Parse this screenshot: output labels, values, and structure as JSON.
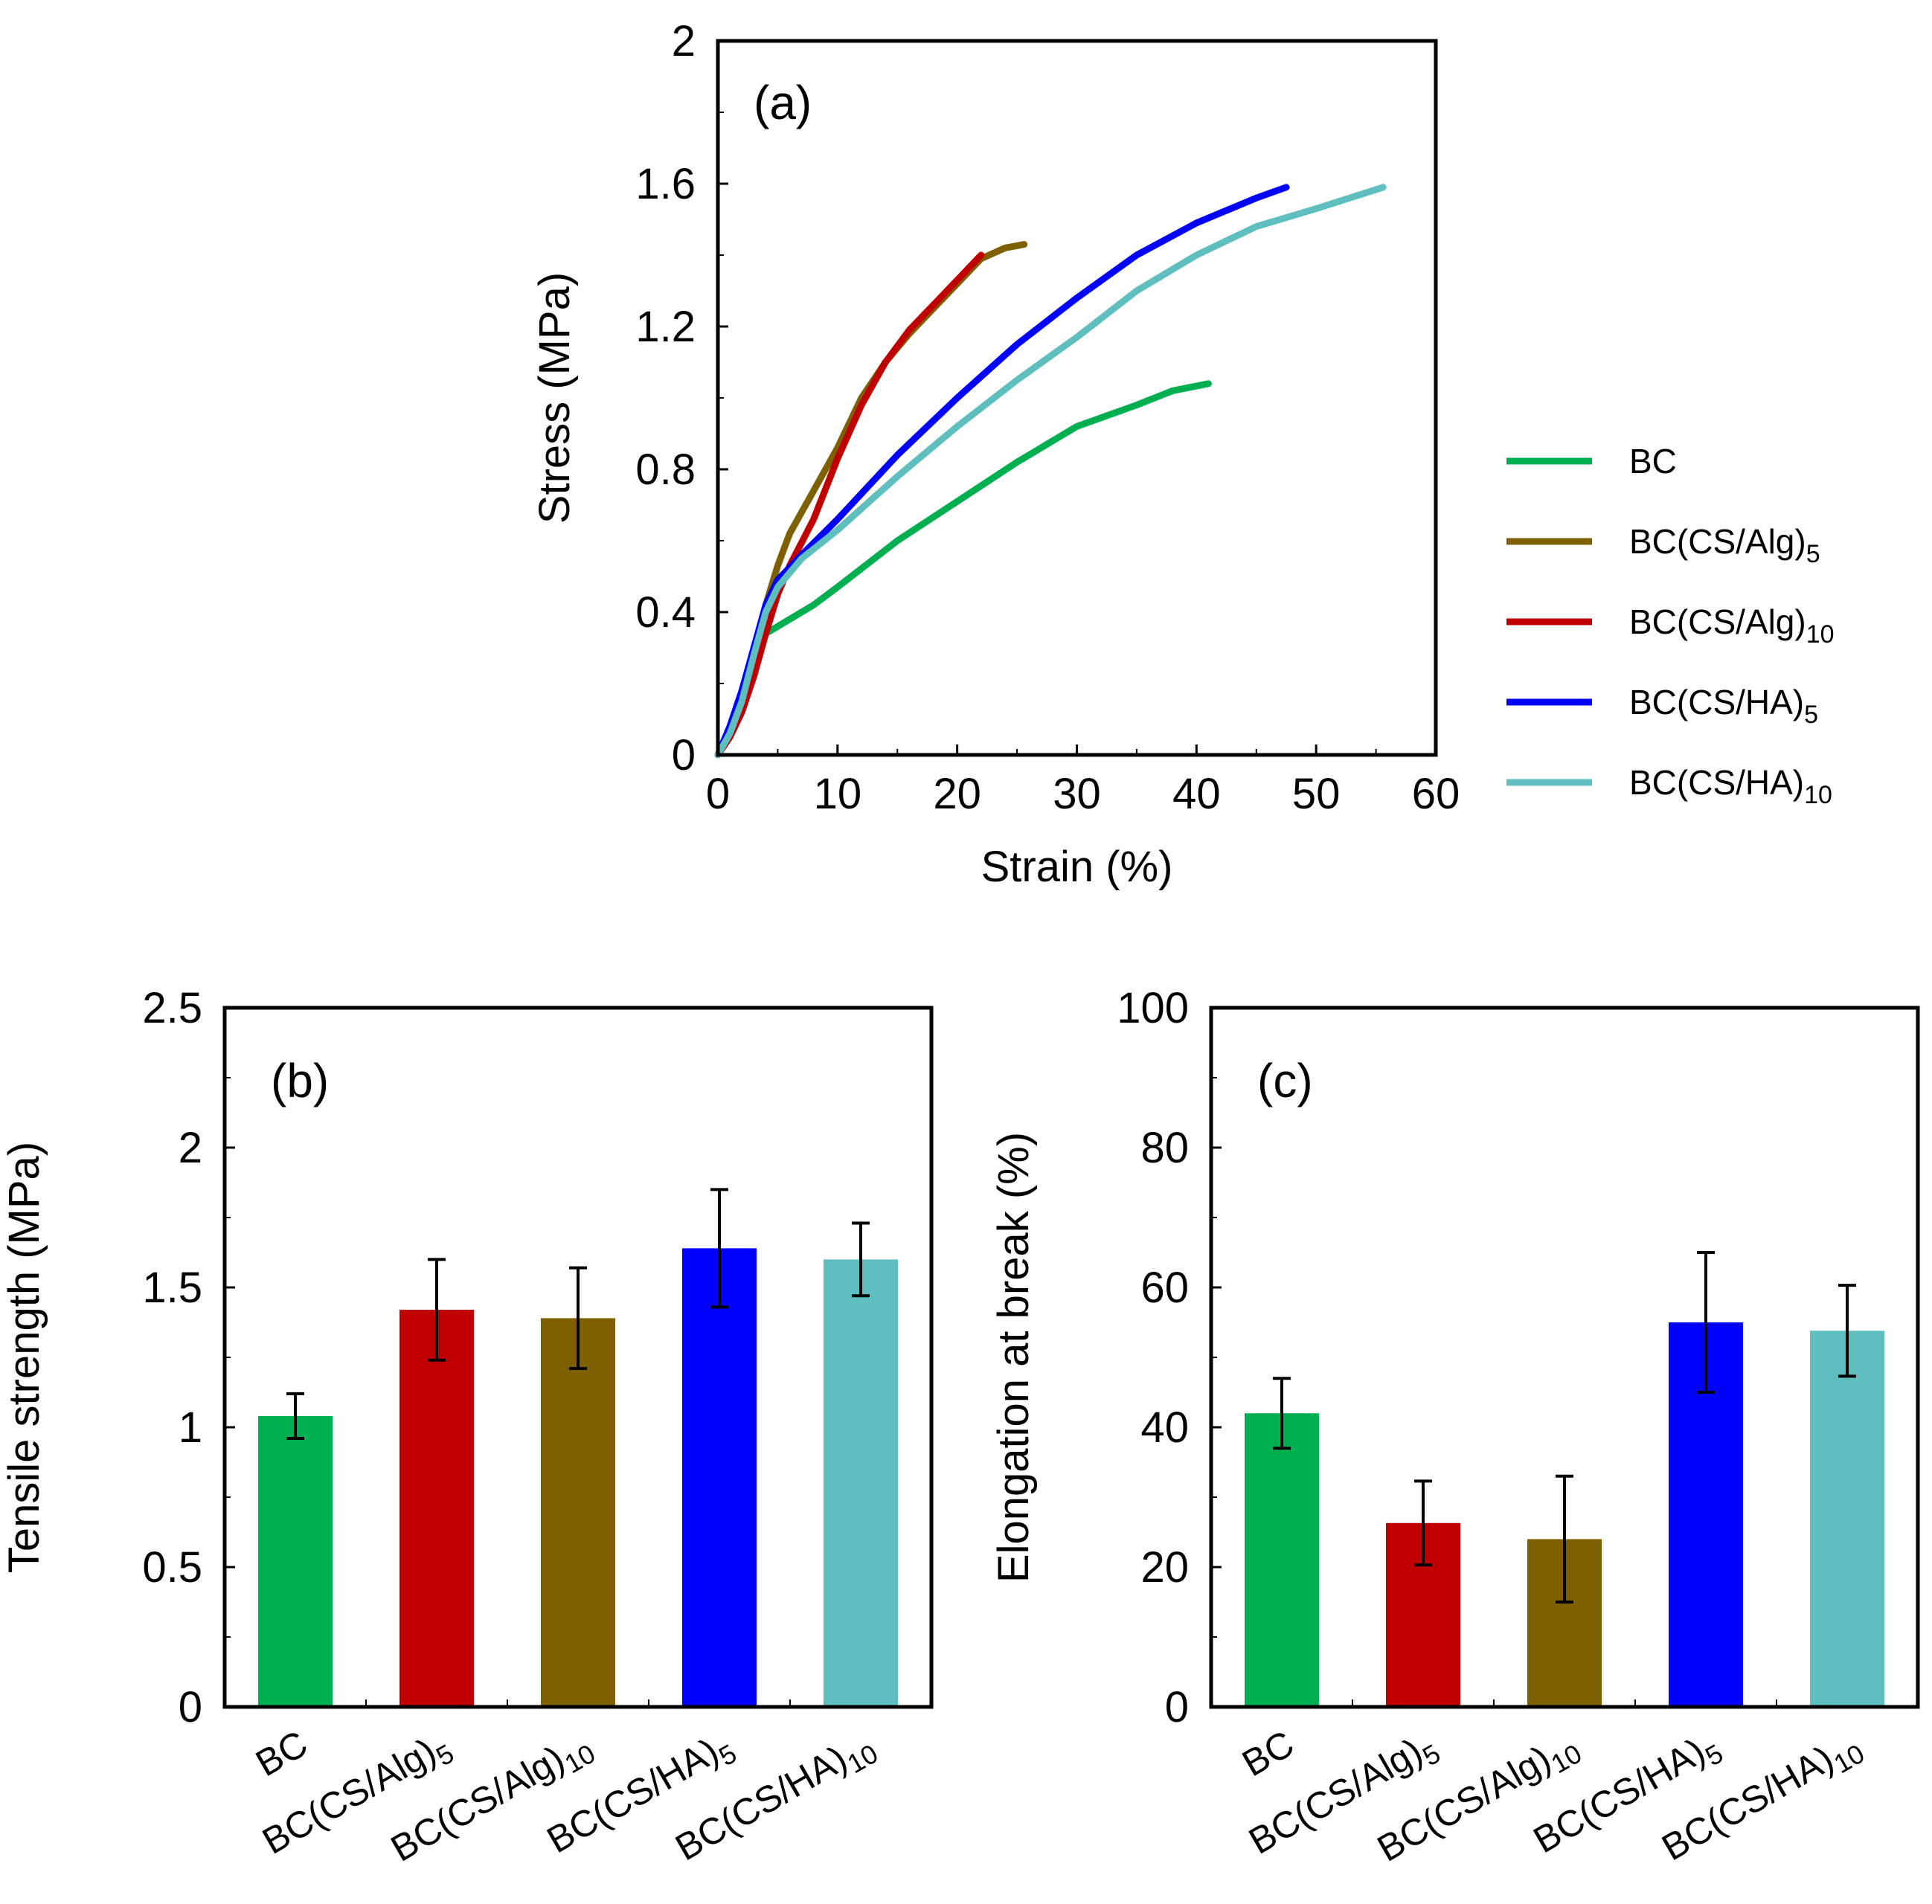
{
  "chart_data": [
    {
      "id": "a",
      "type": "line",
      "panel_label": "(a)",
      "xlabel": "Strain (%)",
      "ylabel": "Stress (MPa)",
      "xlim": [
        0,
        60
      ],
      "ylim": [
        0,
        2
      ],
      "xticks": [
        "0",
        "10",
        "20",
        "30",
        "40",
        "50",
        "60"
      ],
      "yticks": [
        "0",
        "0.4",
        "0.8",
        "1.2",
        "1.6",
        "2"
      ],
      "xtick_values": [
        0,
        10,
        20,
        30,
        40,
        50,
        60
      ],
      "ytick_values": [
        0,
        0.4,
        0.8,
        1.2,
        1.6,
        2
      ],
      "legend_position": "right",
      "series": [
        {
          "name": "BC",
          "base": "BC",
          "sub": "",
          "color": "#00b050",
          "x": [
            0,
            1,
            2,
            3,
            4,
            5,
            8,
            10,
            15,
            20,
            25,
            30,
            35,
            38,
            41
          ],
          "y": [
            0,
            0.07,
            0.17,
            0.27,
            0.34,
            0.36,
            0.42,
            0.47,
            0.6,
            0.71,
            0.82,
            0.92,
            0.98,
            1.02,
            1.04
          ]
        },
        {
          "name": "BC(CS/Alg)5",
          "base": "BC(CS/Alg)",
          "sub": "5",
          "color": "#7f6000",
          "x": [
            0,
            1,
            2,
            3,
            4,
            5,
            6,
            8,
            10,
            12,
            14,
            16,
            18,
            20,
            22,
            24,
            25.6
          ],
          "y": [
            0,
            0.06,
            0.15,
            0.28,
            0.42,
            0.53,
            0.62,
            0.74,
            0.86,
            1.0,
            1.1,
            1.18,
            1.25,
            1.32,
            1.39,
            1.42,
            1.43
          ]
        },
        {
          "name": "BC(CS/Alg)10",
          "base": "BC(CS/Alg)",
          "sub": "10",
          "color": "#c00000",
          "x": [
            0,
            1,
            2,
            3,
            4,
            5,
            6,
            8,
            10,
            12,
            14,
            16,
            18,
            20,
            22
          ],
          "y": [
            0,
            0.05,
            0.12,
            0.22,
            0.34,
            0.45,
            0.53,
            0.66,
            0.83,
            0.98,
            1.1,
            1.19,
            1.26,
            1.33,
            1.4
          ]
        },
        {
          "name": "BC(CS/HA)5",
          "base": "BC(CS/HA)",
          "sub": "5",
          "color": "#0000ff",
          "x": [
            0,
            1,
            2,
            3,
            4,
            5,
            7,
            10,
            15,
            20,
            25,
            30,
            35,
            40,
            45,
            47.5
          ],
          "y": [
            0,
            0.08,
            0.18,
            0.3,
            0.42,
            0.49,
            0.56,
            0.66,
            0.84,
            1.0,
            1.15,
            1.28,
            1.4,
            1.49,
            1.56,
            1.59
          ]
        },
        {
          "name": "BC(CS/HA)10",
          "base": "BC(CS/HA)",
          "sub": "10",
          "color": "#5fbfbf",
          "x": [
            0,
            1,
            2,
            3,
            4,
            5,
            7,
            10,
            15,
            20,
            25,
            30,
            35,
            40,
            45,
            50,
            55.6
          ],
          "y": [
            0,
            0.06,
            0.15,
            0.28,
            0.4,
            0.47,
            0.55,
            0.63,
            0.78,
            0.92,
            1.05,
            1.17,
            1.3,
            1.4,
            1.48,
            1.53,
            1.59
          ]
        }
      ]
    },
    {
      "id": "b",
      "type": "bar",
      "panel_label": "(b)",
      "xlabel": "",
      "ylabel": "Tensile strength (MPa)",
      "ylim": [
        0,
        2.5
      ],
      "yticks": [
        "0",
        "0.5",
        "1",
        "1.5",
        "2",
        "2.5"
      ],
      "ytick_values": [
        0,
        0.5,
        1,
        1.5,
        2,
        2.5
      ],
      "categories": [
        {
          "base": "BC",
          "sub": ""
        },
        {
          "base": "BC(CS/Alg)",
          "sub": "5"
        },
        {
          "base": "BC(CS/Alg)",
          "sub": "10"
        },
        {
          "base": "BC(CS/HA)",
          "sub": "5"
        },
        {
          "base": "BC(CS/HA)",
          "sub": "10"
        }
      ],
      "values": [
        1.04,
        1.42,
        1.39,
        1.64,
        1.6
      ],
      "errors": [
        0.08,
        0.18,
        0.18,
        0.21,
        0.13
      ],
      "colors": [
        "#00b050",
        "#c00000",
        "#7f6000",
        "#0000ff",
        "#5fbfbf"
      ]
    },
    {
      "id": "c",
      "type": "bar",
      "panel_label": "(c)",
      "xlabel": "",
      "ylabel": "Elongation at break (%)",
      "ylim": [
        0,
        100
      ],
      "yticks": [
        "0",
        "20",
        "40",
        "60",
        "80",
        "100"
      ],
      "ytick_values": [
        0,
        20,
        40,
        60,
        80,
        100
      ],
      "categories": [
        {
          "base": "BC",
          "sub": ""
        },
        {
          "base": "BC(CS/Alg)",
          "sub": "5"
        },
        {
          "base": "BC(CS/Alg)",
          "sub": "10"
        },
        {
          "base": "BC(CS/HA)",
          "sub": "5"
        },
        {
          "base": "BC(CS/HA)",
          "sub": "10"
        }
      ],
      "values": [
        42,
        26.3,
        24,
        55,
        53.8
      ],
      "errors": [
        5,
        6,
        9,
        10,
        6.5
      ],
      "colors": [
        "#00b050",
        "#c00000",
        "#7f6000",
        "#0000ff",
        "#5fbfbf"
      ]
    }
  ]
}
